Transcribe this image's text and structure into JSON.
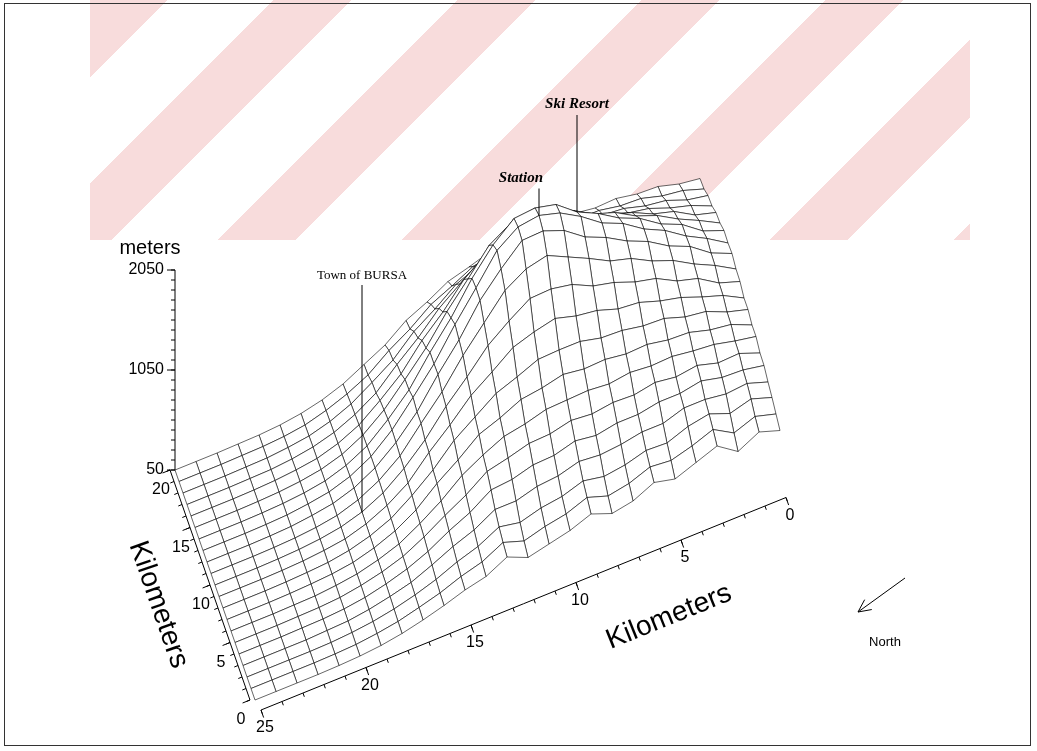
{
  "chart_data": {
    "type": "surface",
    "x_label": "Kilometers",
    "y_label": "Kilometers",
    "z_label": "meters",
    "x": [
      0,
      1,
      2,
      3,
      4,
      5,
      6,
      7,
      8,
      9,
      10,
      11,
      12,
      13,
      14,
      15,
      16,
      17,
      18,
      19,
      20,
      21,
      22,
      23,
      24,
      25
    ],
    "y": [
      0,
      1,
      2,
      3,
      4,
      5,
      6,
      7,
      8,
      9,
      10,
      11,
      12,
      13,
      14,
      15,
      16,
      17,
      18,
      19,
      20
    ],
    "z": [
      [
        620,
        690,
        580,
        720,
        640,
        560,
        610,
        510,
        470,
        550,
        470,
        420,
        370,
        460,
        350,
        300,
        230,
        170,
        120,
        85,
        65,
        55,
        50,
        50,
        50,
        50
      ],
      [
        670,
        730,
        650,
        770,
        690,
        630,
        650,
        570,
        530,
        600,
        520,
        480,
        420,
        490,
        380,
        320,
        240,
        180,
        125,
        90,
        65,
        55,
        50,
        50,
        50,
        50
      ],
      [
        720,
        790,
        730,
        810,
        770,
        690,
        700,
        640,
        610,
        650,
        580,
        550,
        490,
        530,
        420,
        350,
        260,
        190,
        135,
        95,
        70,
        55,
        50,
        50,
        50,
        50
      ],
      [
        760,
        830,
        810,
        840,
        840,
        770,
        770,
        730,
        710,
        730,
        670,
        650,
        590,
        590,
        470,
        390,
        290,
        200,
        145,
        100,
        70,
        60,
        50,
        50,
        50,
        50
      ],
      [
        810,
        850,
        860,
        910,
        870,
        870,
        830,
        830,
        790,
        820,
        760,
        750,
        690,
        670,
        530,
        430,
        310,
        220,
        155,
        105,
        75,
        60,
        55,
        50,
        50,
        50
      ],
      [
        820,
        900,
        890,
        950,
        920,
        950,
        910,
        920,
        890,
        910,
        860,
        850,
        790,
        740,
        590,
        470,
        340,
        230,
        160,
        110,
        75,
        60,
        55,
        50,
        50,
        50
      ],
      [
        870,
        910,
        960,
        980,
        1010,
        1000,
        1020,
        990,
        1010,
        1000,
        990,
        930,
        890,
        790,
        670,
        500,
        360,
        240,
        165,
        110,
        80,
        60,
        55,
        50,
        50,
        50
      ],
      [
        870,
        960,
        990,
        1050,
        1060,
        1100,
        1090,
        1120,
        1110,
        1140,
        1090,
        1060,
        960,
        880,
        710,
        560,
        380,
        255,
        170,
        110,
        80,
        65,
        55,
        50,
        50,
        50
      ],
      [
        910,
        970,
        1060,
        1090,
        1160,
        1170,
        1210,
        1220,
        1270,
        1270,
        1260,
        1170,
        1090,
        940,
        790,
        580,
        410,
        265,
        175,
        115,
        80,
        65,
        55,
        50,
        50,
        50
      ],
      [
        910,
        1020,
        1090,
        1170,
        1220,
        1290,
        1310,
        1380,
        1410,
        1470,
        1420,
        1350,
        1190,
        1040,
        830,
        640,
        420,
        280,
        180,
        115,
        85,
        65,
        55,
        50,
        50,
        50
      ],
      [
        960,
        1030,
        1160,
        1220,
        1330,
        1380,
        1460,
        1510,
        1610,
        1650,
        1640,
        1500,
        1340,
        1110,
        900,
        650,
        450,
        290,
        185,
        120,
        85,
        65,
        55,
        50,
        50,
        50
      ],
      [
        970,
        1090,
        1190,
        1310,
        1390,
        1500,
        1560,
        1670,
        1770,
        1870,
        1820,
        1690,
        1450,
        1210,
        930,
        700,
        460,
        300,
        190,
        120,
        85,
        65,
        55,
        50,
        50,
        50
      ],
      [
        1010,
        1100,
        1250,
        1340,
        1470,
        1560,
        1680,
        1770,
        1920,
        2000,
        1990,
        1790,
        1560,
        1250,
        990,
        700,
        480,
        310,
        195,
        125,
        90,
        65,
        55,
        50,
        50,
        50
      ],
      [
        1000,
        1130,
        1240,
        1380,
        1480,
        1620,
        1710,
        1860,
        1980,
        2040,
        2010,
        1860,
        1570,
        1290,
        980,
        730,
        490,
        310,
        195,
        125,
        90,
        65,
        55,
        50,
        50,
        50
      ],
      [
        1010,
        1090,
        1240,
        1330,
        1470,
        1560,
        1690,
        1790,
        1950,
        2000,
        1980,
        1800,
        1550,
        1240,
        980,
        690,
        480,
        300,
        190,
        120,
        85,
        65,
        55,
        50,
        50,
        50
      ],
      [
        970,
        1080,
        1180,
        1300,
        1380,
        1500,
        1570,
        1690,
        1780,
        1860,
        1810,
        1680,
        1430,
        1190,
        910,
        680,
        460,
        295,
        185,
        120,
        85,
        65,
        55,
        50,
        50,
        50
      ],
      [
        960,
        1020,
        1140,
        1200,
        1300,
        1360,
        1450,
        1500,
        1600,
        1620,
        1610,
        1470,
        1310,
        1070,
        870,
        620,
        440,
        280,
        180,
        115,
        85,
        65,
        55,
        50,
        50,
        50
      ],
      [
        910,
        1000,
        1060,
        1140,
        1180,
        1260,
        1290,
        1360,
        1390,
        1430,
        1380,
        1310,
        1150,
        990,
        780,
        600,
        400,
        270,
        175,
        115,
        80,
        60,
        55,
        50,
        50,
        50
      ],
      [
        900,
        940,
        1020,
        1050,
        1110,
        1130,
        1180,
        1190,
        1230,
        1220,
        1210,
        1120,
        1030,
        870,
        730,
        530,
        390,
        260,
        170,
        110,
        80,
        60,
        55,
        50,
        50,
        50
      ],
      [
        850,
        920,
        950,
        1010,
        1020,
        1060,
        1060,
        1090,
        1080,
        1100,
        1050,
        1010,
        900,
        800,
        640,
        510,
        350,
        245,
        165,
        105,
        75,
        60,
        55,
        50,
        50,
        50
      ],
      [
        840,
        870,
        930,
        940,
        980,
        970,
        1000,
        980,
        1000,
        970,
        960,
        890,
        830,
        710,
        610,
        450,
        340,
        230,
        155,
        105,
        75,
        60,
        55,
        50,
        50,
        50
      ]
    ],
    "xlim": [
      0,
      25
    ],
    "xticks": [
      0,
      5,
      10,
      15,
      20,
      25
    ],
    "ylim": [
      0,
      20
    ],
    "yticks": [
      0,
      5,
      10,
      15,
      20
    ],
    "zlim": [
      50,
      2050
    ],
    "zticks": [
      50,
      1050,
      2050
    ],
    "annotations": [
      {
        "text": "Station",
        "x": 9,
        "y": 13
      },
      {
        "text": "Ski Resort",
        "x": 7,
        "y": 14
      },
      {
        "text": "Town of BURSA",
        "x": 18,
        "y": 10
      }
    ],
    "north_label": "North"
  }
}
